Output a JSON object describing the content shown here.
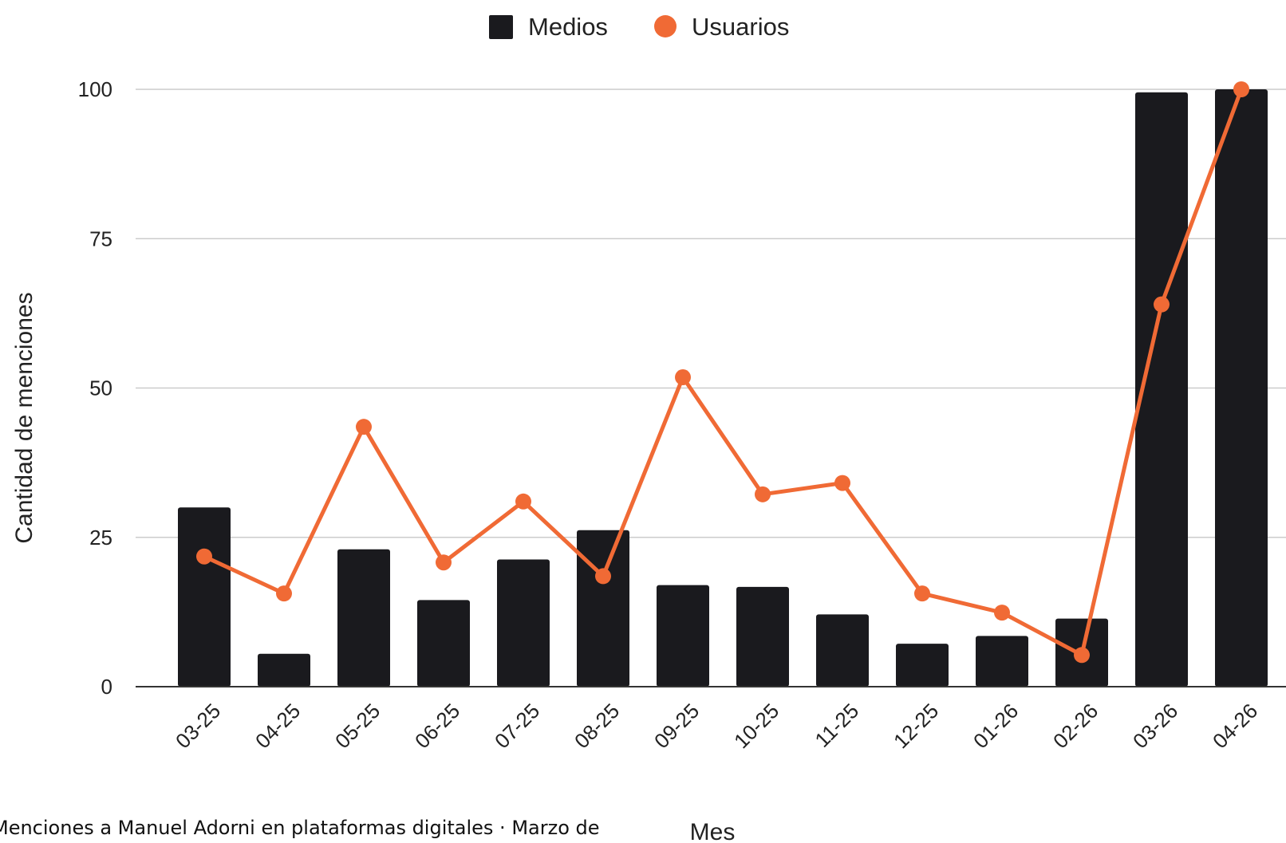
{
  "caption": "Menciones a Manuel Adorni en plataformas digitales · Marzo de",
  "chart_data": {
    "type": "bar",
    "categories": [
      "03-25",
      "04-25",
      "05-25",
      "06-25",
      "07-25",
      "08-25",
      "09-25",
      "10-25",
      "11-25",
      "12-25",
      "01-26",
      "02-26",
      "03-26",
      "04-26"
    ],
    "series": [
      {
        "name": "Medios",
        "type": "bar",
        "color": "#1a1a1e",
        "values": [
          30,
          5.5,
          23,
          14.5,
          21.3,
          26.2,
          17,
          16.7,
          12.1,
          7.2,
          8.5,
          11.4,
          99.5,
          100
        ]
      },
      {
        "name": "Usuarios",
        "type": "line",
        "color": "#f06a35",
        "values": [
          21.8,
          15.6,
          43.5,
          20.8,
          31,
          18.5,
          51.8,
          32.2,
          34.1,
          15.6,
          12.4,
          5.3,
          64,
          100
        ]
      }
    ],
    "xlabel": "Mes",
    "ylabel": "Cantidad de menciones",
    "yticks": [
      "0",
      "25",
      "50",
      "75",
      "100"
    ],
    "ylim": [
      0,
      100
    ],
    "grid": true,
    "legend_position": "top-center"
  }
}
